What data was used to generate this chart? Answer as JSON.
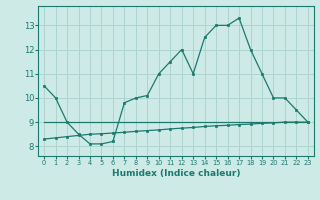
{
  "x": [
    0,
    1,
    2,
    3,
    4,
    5,
    6,
    7,
    8,
    9,
    10,
    11,
    12,
    13,
    14,
    15,
    16,
    17,
    18,
    19,
    20,
    21,
    22,
    23
  ],
  "line1": [
    10.5,
    10.0,
    9.0,
    8.5,
    8.1,
    8.1,
    8.2,
    9.8,
    10.0,
    10.1,
    11.0,
    11.5,
    12.0,
    11.0,
    12.5,
    13.0,
    13.0,
    13.3,
    12.0,
    11.0,
    10.0,
    10.0,
    9.5,
    9.0
  ],
  "line2": [
    8.3,
    8.35,
    8.4,
    8.45,
    8.5,
    8.52,
    8.55,
    8.58,
    8.62,
    8.65,
    8.68,
    8.72,
    8.75,
    8.78,
    8.82,
    8.85,
    8.87,
    8.9,
    8.92,
    8.95,
    8.97,
    9.0,
    9.0,
    9.0
  ],
  "line3": [
    9.0,
    9.0,
    9.0,
    9.0,
    9.0,
    9.0,
    9.0,
    9.0,
    9.0,
    9.0,
    9.0,
    9.0,
    9.0,
    9.0,
    9.0,
    9.0,
    9.0,
    9.0,
    9.0,
    9.0,
    9.0,
    9.0,
    9.0,
    9.0
  ],
  "line_color": "#1a7a6e",
  "bg_color": "#ceeae7",
  "grid_color": "#aed4d0",
  "xlabel": "Humidex (Indice chaleur)",
  "ylim": [
    7.6,
    13.8
  ],
  "yticks": [
    8,
    9,
    10,
    11,
    12,
    13
  ],
  "xticks": [
    0,
    1,
    2,
    3,
    4,
    5,
    6,
    7,
    8,
    9,
    10,
    11,
    12,
    13,
    14,
    15,
    16,
    17,
    18,
    19,
    20,
    21,
    22,
    23
  ]
}
